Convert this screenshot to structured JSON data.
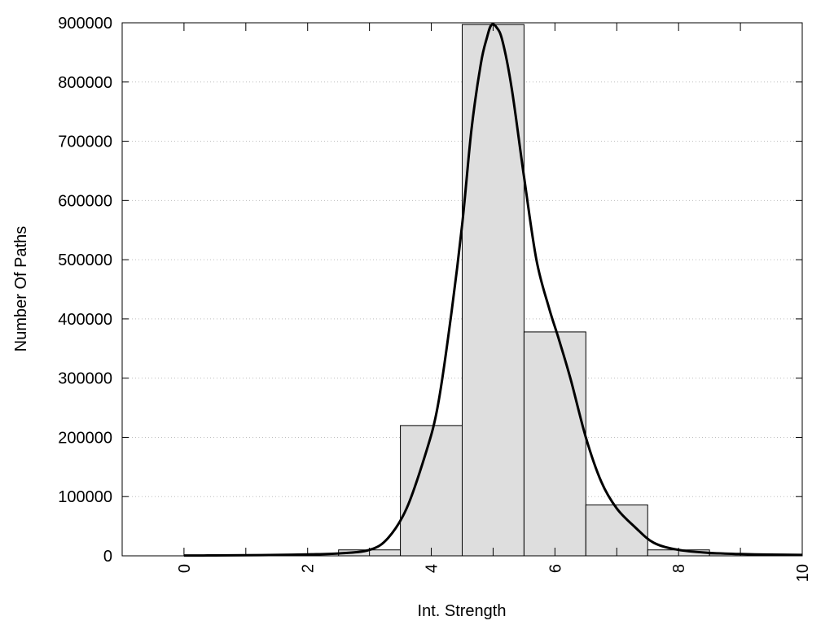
{
  "chart_data": {
    "type": "bar",
    "xlabel": "Int. Strength",
    "ylabel": "Number Of Paths",
    "xlim": [
      -1,
      10
    ],
    "ylim": [
      0,
      900000
    ],
    "grid": "horizontal dotted",
    "x_ticks": [
      "0",
      "2",
      "4",
      "6",
      "8",
      "10"
    ],
    "y_ticks": [
      "0",
      "100000",
      "200000",
      "300000",
      "400000",
      "500000",
      "600000",
      "700000",
      "800000",
      "900000"
    ],
    "bars": [
      {
        "x": 0,
        "value": 0
      },
      {
        "x": 1,
        "value": 0
      },
      {
        "x": 2,
        "value": 0
      },
      {
        "x": 3,
        "value": 10000
      },
      {
        "x": 4,
        "value": 220000
      },
      {
        "x": 5,
        "value": 897000
      },
      {
        "x": 6,
        "value": 378000
      },
      {
        "x": 7,
        "value": 86000
      },
      {
        "x": 8,
        "value": 10000
      },
      {
        "x": 9,
        "value": 3000
      }
    ],
    "curve": {
      "x": [
        0,
        0.5,
        1,
        1.5,
        2,
        2.5,
        3,
        3.3,
        3.6,
        3.9,
        4.1,
        4.3,
        4.5,
        4.65,
        4.8,
        4.9,
        4.97,
        5.05,
        5.15,
        5.3,
        5.5,
        5.7,
        5.9,
        6.05,
        6.25,
        6.5,
        6.75,
        7,
        7.3,
        7.6,
        8,
        8.5,
        9,
        9.5,
        10
      ],
      "y": [
        500,
        700,
        1000,
        1500,
        2500,
        4000,
        10000,
        30000,
        80000,
        170000,
        250000,
        390000,
        560000,
        720000,
        830000,
        875000,
        896000,
        893000,
        870000,
        790000,
        640000,
        500000,
        420000,
        370000,
        300000,
        200000,
        125000,
        80000,
        48000,
        22000,
        10000,
        5000,
        3000,
        2000,
        1500
      ]
    }
  }
}
